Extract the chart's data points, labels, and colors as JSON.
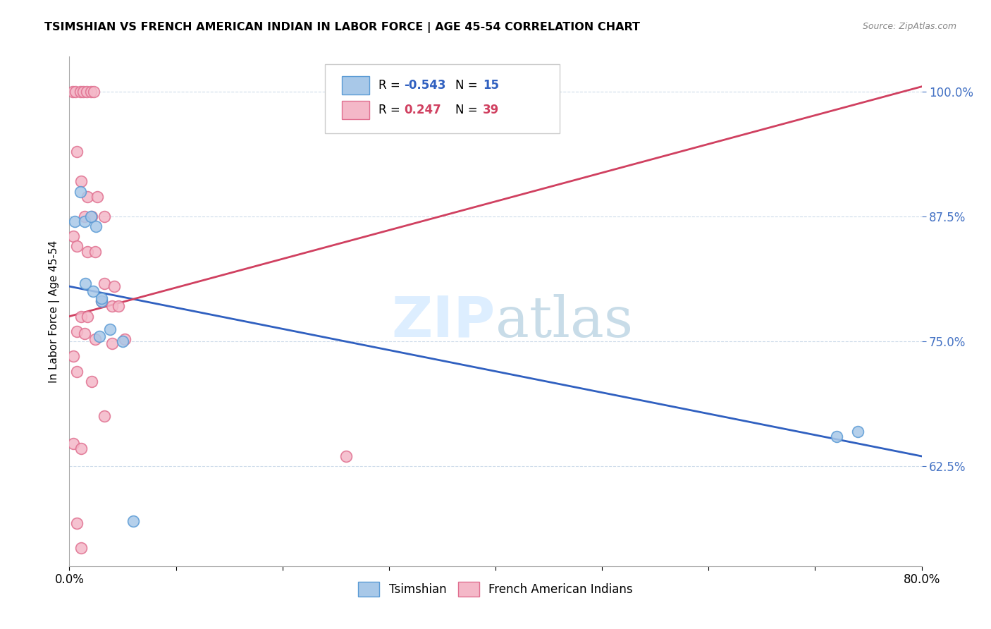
{
  "title": "TSIMSHIAN VS FRENCH AMERICAN INDIAN IN LABOR FORCE | AGE 45-54 CORRELATION CHART",
  "source_text": "Source: ZipAtlas.com",
  "ylabel": "In Labor Force | Age 45-54",
  "x_min": 0.0,
  "x_max": 0.8,
  "y_min": 0.525,
  "y_max": 1.035,
  "x_ticks": [
    0.0,
    0.1,
    0.2,
    0.3,
    0.4,
    0.5,
    0.6,
    0.7,
    0.8
  ],
  "x_tick_labels": [
    "0.0%",
    "",
    "",
    "",
    "",
    "",
    "",
    "",
    "80.0%"
  ],
  "y_ticks": [
    0.625,
    0.75,
    0.875,
    1.0
  ],
  "y_tick_labels": [
    "62.5%",
    "75.0%",
    "87.5%",
    "100.0%"
  ],
  "tsimshian_color": "#a8c8e8",
  "tsimshian_edge_color": "#5b9bd5",
  "french_color": "#f4b8c8",
  "french_edge_color": "#e07090",
  "tsimshian_R": -0.543,
  "tsimshian_N": 15,
  "french_R": 0.247,
  "french_N": 39,
  "tsimshian_line_color": "#3060c0",
  "french_line_color": "#d04060",
  "watermark_color": "#ddeeff",
  "legend_label_tsimshian": "Tsimshian",
  "legend_label_french": "French American Indians",
  "tsimshian_line_x0": 0.0,
  "tsimshian_line_y0": 0.805,
  "tsimshian_line_x1": 0.8,
  "tsimshian_line_y1": 0.635,
  "french_line_x0": 0.0,
  "french_line_y0": 0.775,
  "french_line_x1": 0.8,
  "french_line_y1": 1.005,
  "tsimshian_x": [
    0.005,
    0.01,
    0.014,
    0.02,
    0.025,
    0.015,
    0.022,
    0.03,
    0.038,
    0.03,
    0.05,
    0.06,
    0.72,
    0.74,
    0.028
  ],
  "tsimshian_y": [
    0.87,
    0.9,
    0.87,
    0.875,
    0.865,
    0.808,
    0.8,
    0.79,
    0.762,
    0.793,
    0.75,
    0.57,
    0.655,
    0.66,
    0.755
  ],
  "french_x": [
    0.003,
    0.006,
    0.01,
    0.013,
    0.016,
    0.02,
    0.023,
    0.007,
    0.011,
    0.017,
    0.026,
    0.014,
    0.021,
    0.033,
    0.004,
    0.007,
    0.017,
    0.024,
    0.033,
    0.042,
    0.03,
    0.04,
    0.046,
    0.011,
    0.017,
    0.007,
    0.014,
    0.024,
    0.04,
    0.052,
    0.004,
    0.007,
    0.021,
    0.033,
    0.004,
    0.011,
    0.007,
    0.26,
    0.011
  ],
  "french_y": [
    1.0,
    1.0,
    1.0,
    1.0,
    1.0,
    1.0,
    1.0,
    0.94,
    0.91,
    0.895,
    0.895,
    0.875,
    0.875,
    0.875,
    0.855,
    0.845,
    0.84,
    0.84,
    0.808,
    0.805,
    0.79,
    0.785,
    0.785,
    0.775,
    0.775,
    0.76,
    0.758,
    0.752,
    0.748,
    0.752,
    0.735,
    0.72,
    0.71,
    0.675,
    0.648,
    0.643,
    0.568,
    0.635,
    0.543
  ]
}
